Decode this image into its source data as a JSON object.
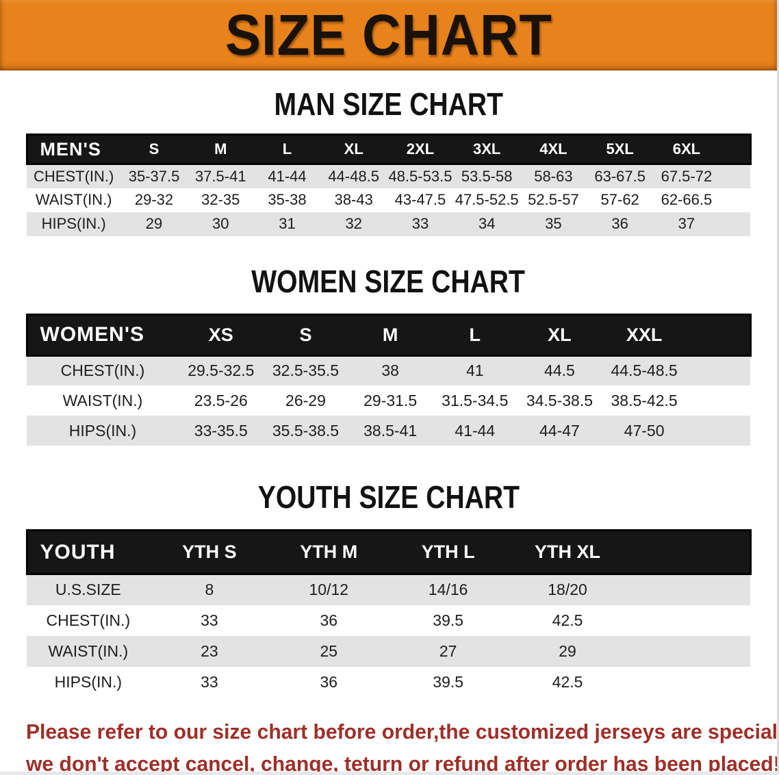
{
  "banner": {
    "title": "SIZE CHART"
  },
  "theme": {
    "banner_bg": "#e8821b",
    "banner_text": "#1a1208",
    "header_bg": "#161616",
    "header_text": "#ffffff",
    "stripe": "#e3e3e3",
    "disclaimer_color": "#9e2f28"
  },
  "sections": [
    {
      "heading": "MAN SIZE CHART",
      "table": {
        "header_label": "MEN'S",
        "sizes": [
          "S",
          "M",
          "L",
          "XL",
          "2XL",
          "3XL",
          "4XL",
          "5XL",
          "6XL"
        ],
        "rows": [
          {
            "label": "CHEST(IN.)",
            "values": [
              "35-37.5",
              "37.5-41",
              "41-44",
              "44-48.5",
              "48.5-53.5",
              "53.5-58",
              "58-63",
              "63-67.5",
              "67.5-72"
            ]
          },
          {
            "label": "WAIST(IN.)",
            "values": [
              "29-32",
              "32-35",
              "35-38",
              "38-43",
              "43-47.5",
              "47.5-52.5",
              "52.5-57",
              "57-62",
              "62-66.5"
            ]
          },
          {
            "label": "HIPS(IN.)",
            "values": [
              "29",
              "30",
              "31",
              "32",
              "33",
              "34",
              "35",
              "36",
              "37"
            ]
          }
        ]
      }
    },
    {
      "heading": "WOMEN SIZE CHART",
      "table": {
        "header_label": "WOMEN'S",
        "sizes": [
          "XS",
          "S",
          "M",
          "L",
          "XL",
          "XXL"
        ],
        "rows": [
          {
            "label": "CHEST(IN.)",
            "values": [
              "29.5-32.5",
              "32.5-35.5",
              "38",
              "41",
              "44.5",
              "44.5-48.5"
            ]
          },
          {
            "label": "WAIST(IN.)",
            "values": [
              "23.5-26",
              "26-29",
              "29-31.5",
              "31.5-34.5",
              "34.5-38.5",
              "38.5-42.5"
            ]
          },
          {
            "label": "HIPS(IN.)",
            "values": [
              "33-35.5",
              "35.5-38.5",
              "38.5-41",
              "41-44",
              "44-47",
              "47-50"
            ]
          }
        ]
      }
    },
    {
      "heading": "YOUTH SIZE CHART",
      "table": {
        "header_label": "YOUTH",
        "sizes": [
          "YTH S",
          "YTH M",
          "YTH L",
          "YTH XL"
        ],
        "rows": [
          {
            "label": "U.S.SIZE",
            "values": [
              "8",
              "10/12",
              "14/16",
              "18/20"
            ]
          },
          {
            "label": "CHEST(IN.)",
            "values": [
              "33",
              "36",
              "39.5",
              "42.5"
            ]
          },
          {
            "label": "WAIST(IN.)",
            "values": [
              "23",
              "25",
              "27",
              "29"
            ]
          },
          {
            "label": "HIPS(IN.)",
            "values": [
              "33",
              "36",
              "39.5",
              "42.5"
            ]
          }
        ]
      }
    }
  ],
  "disclaimer": {
    "lines": [
      "Please refer to our size chart before order,the customized jerseys are special products,",
      "we don't accept cancel, change, teturn or refund after order has been placed!"
    ]
  }
}
